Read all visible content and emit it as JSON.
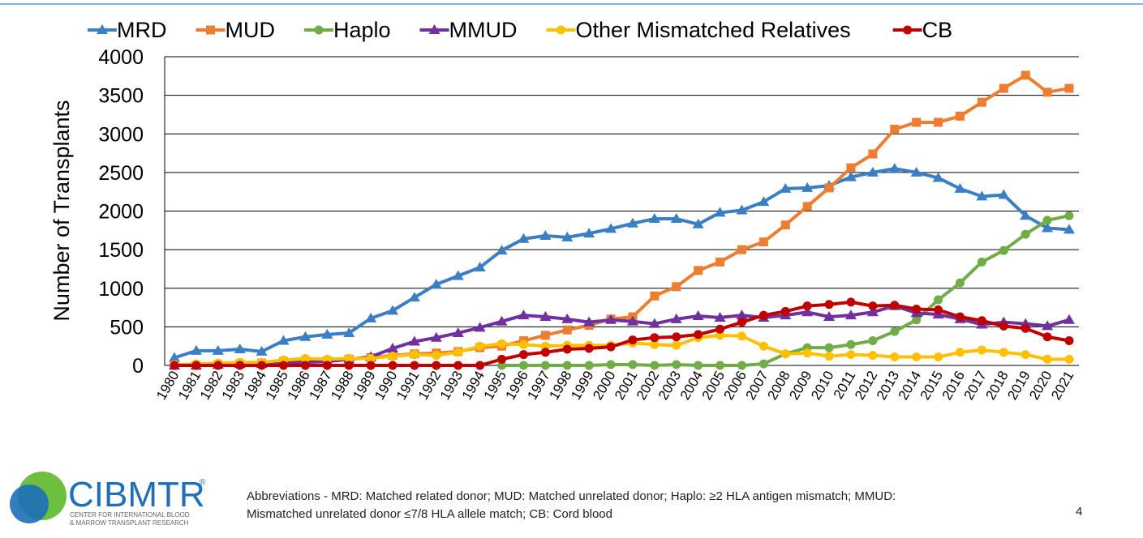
{
  "chart_data": {
    "type": "line",
    "y_label": "Number of Transplants",
    "categories": [
      "1980",
      "1981",
      "1982",
      "1983",
      "1984",
      "1985",
      "1986",
      "1987",
      "1988",
      "1989",
      "1990",
      "1991",
      "1992",
      "1993",
      "1994",
      "1995",
      "1996",
      "1997",
      "1998",
      "1999",
      "2000",
      "2001",
      "2002",
      "2003",
      "2004",
      "2005",
      "2006",
      "2007",
      "2008",
      "2009",
      "2010",
      "2011",
      "2012",
      "2013",
      "2014",
      "2015",
      "2016",
      "2017",
      "2018",
      "2019",
      "2020",
      "2021"
    ],
    "ylim": [
      0,
      4000
    ],
    "yticks": [
      0,
      500,
      1000,
      1500,
      2000,
      2500,
      3000,
      3500,
      4000
    ],
    "grid": true,
    "legend": "top",
    "series": [
      {
        "name": "MRD",
        "color": "#3a7fc4",
        "marker": "triangle",
        "values": [
          100,
          190,
          190,
          210,
          180,
          320,
          370,
          400,
          420,
          610,
          710,
          880,
          1050,
          1160,
          1270,
          1490,
          1640,
          1680,
          1660,
          1710,
          1770,
          1840,
          1900,
          1900,
          1830,
          1980,
          2010,
          2120,
          2290,
          2300,
          2330,
          2440,
          2500,
          2550,
          2500,
          2430,
          2290,
          2190,
          2210,
          1940,
          1780,
          1760
        ]
      },
      {
        "name": "MUD",
        "color": "#ed7d31",
        "marker": "square",
        "values": [
          0,
          0,
          10,
          20,
          30,
          50,
          60,
          60,
          80,
          100,
          130,
          150,
          160,
          180,
          230,
          250,
          320,
          390,
          460,
          520,
          600,
          630,
          900,
          1020,
          1230,
          1340,
          1500,
          1600,
          1820,
          2060,
          2300,
          2560,
          2740,
          3060,
          3150,
          3150,
          3230,
          3410,
          3590,
          3760,
          3540,
          3590
        ]
      },
      {
        "name": "Haplo",
        "color": "#70ad47",
        "marker": "circle",
        "values": [
          null,
          null,
          null,
          null,
          null,
          null,
          null,
          null,
          null,
          null,
          null,
          null,
          null,
          null,
          null,
          0,
          0,
          0,
          0,
          0,
          10,
          10,
          0,
          10,
          0,
          0,
          0,
          20,
          150,
          230,
          230,
          270,
          320,
          440,
          590,
          850,
          1070,
          1340,
          1490,
          1700,
          1880,
          1940
        ]
      },
      {
        "name": "MMUD",
        "color": "#7030a0",
        "marker": "triangle",
        "values": [
          0,
          0,
          10,
          20,
          20,
          30,
          40,
          50,
          80,
          110,
          220,
          310,
          360,
          420,
          490,
          570,
          650,
          630,
          600,
          560,
          590,
          570,
          540,
          600,
          640,
          620,
          650,
          620,
          650,
          690,
          630,
          650,
          690,
          770,
          680,
          660,
          600,
          530,
          560,
          540,
          510,
          590
        ]
      },
      {
        "name": "Other Mismatched Relatives",
        "color": "#ffc000",
        "marker": "circle",
        "values": [
          10,
          20,
          30,
          40,
          40,
          70,
          90,
          80,
          90,
          90,
          120,
          140,
          130,
          170,
          250,
          280,
          270,
          250,
          260,
          260,
          260,
          290,
          270,
          260,
          360,
          390,
          380,
          250,
          150,
          160,
          120,
          140,
          130,
          110,
          110,
          110,
          170,
          200,
          170,
          140,
          80,
          80
        ]
      },
      {
        "name": "CB",
        "color": "#c00000",
        "marker": "circle",
        "values": [
          0,
          0,
          0,
          0,
          0,
          0,
          0,
          0,
          0,
          0,
          0,
          0,
          0,
          0,
          0,
          80,
          140,
          170,
          210,
          220,
          240,
          330,
          360,
          370,
          400,
          470,
          560,
          650,
          700,
          770,
          790,
          820,
          770,
          780,
          730,
          720,
          630,
          580,
          510,
          480,
          370,
          320
        ]
      }
    ]
  },
  "footer": {
    "logo": "CIBMTR",
    "logo_mark": "®",
    "logo_sub": [
      "CENTER FOR INTERNATIONAL BLOOD",
      "& MARROW TRANSPLANT RESEARCH"
    ],
    "abbreviations": [
      "Abbreviations - MRD: Matched related donor; MUD: Matched unrelated donor; Haplo: ≥2 HLA antigen mismatch; MMUD:",
      "Mismatched unrelated donor ≤7/8 HLA allele match; CB: Cord blood"
    ],
    "page": "4"
  }
}
